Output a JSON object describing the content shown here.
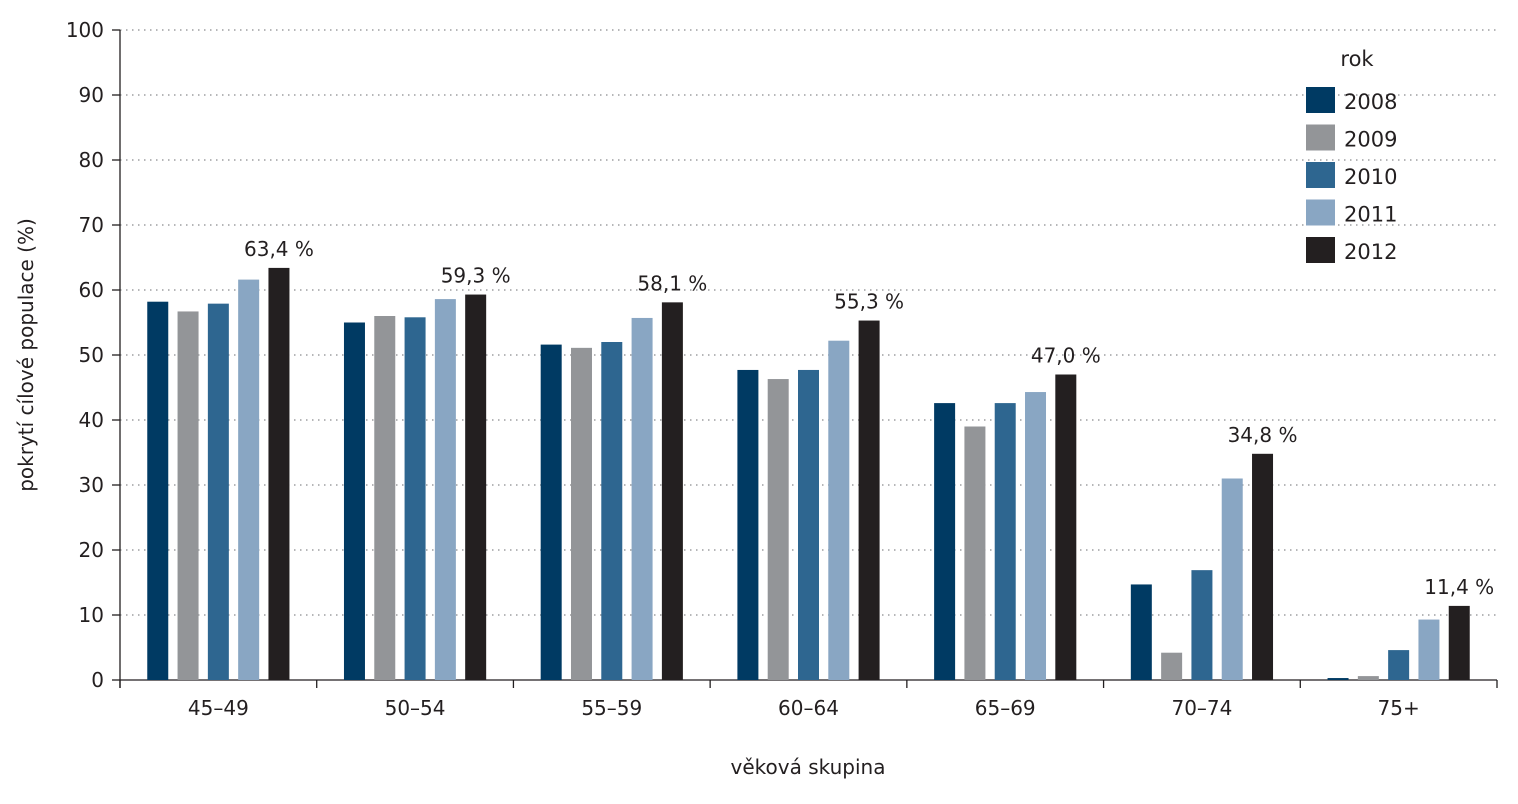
{
  "chart_data": {
    "type": "bar",
    "title": "",
    "xlabel": "věková skupina",
    "ylabel": "pokrytí cílové populace (%)",
    "ylim": [
      0,
      100
    ],
    "yticks": [
      "0",
      "10",
      "20",
      "30",
      "40",
      "50",
      "60",
      "70",
      "80",
      "90",
      "100"
    ],
    "grid": "horizontal dotted",
    "legend_title": "rok",
    "legend_position": "top-right",
    "categories": [
      "45–49",
      "50–54",
      "55–59",
      "60–64",
      "65–69",
      "70–74",
      "75+"
    ],
    "series": [
      {
        "name": "2008",
        "color": "#003a63",
        "values": [
          58.2,
          55.0,
          51.6,
          47.7,
          42.6,
          14.7,
          0.3
        ]
      },
      {
        "name": "2009",
        "color": "#939598",
        "values": [
          56.7,
          56.0,
          51.1,
          46.3,
          39.0,
          4.2,
          0.6
        ]
      },
      {
        "name": "2010",
        "color": "#2e6690",
        "values": [
          57.9,
          55.8,
          52.0,
          47.7,
          42.6,
          16.9,
          4.6
        ]
      },
      {
        "name": "2011",
        "color": "#89a6c3",
        "values": [
          61.6,
          58.6,
          55.7,
          52.2,
          44.3,
          31.0,
          9.3
        ]
      },
      {
        "name": "2012",
        "color": "#231f20",
        "values": [
          63.4,
          59.3,
          58.1,
          55.3,
          47.0,
          34.8,
          11.4
        ]
      }
    ],
    "data_labels": [
      "63,4 %",
      "59,3 %",
      "58,1 %",
      "55,3 %",
      "47,0 %",
      "34,8 %",
      "11,4 %"
    ]
  }
}
